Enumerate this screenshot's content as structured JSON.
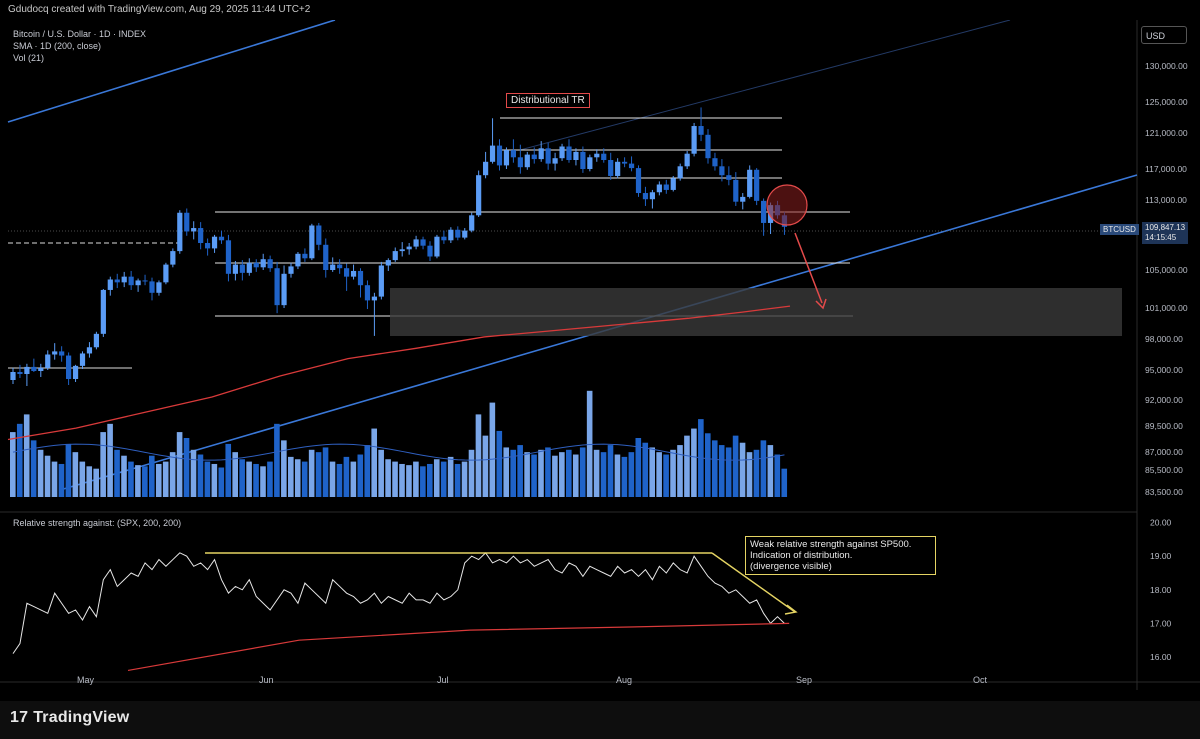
{
  "header": {
    "text": "Gdudocq created with TradingView.com, Aug 29, 2025 11:44 UTC+2"
  },
  "legend": {
    "line1": "Bitcoin / U.S. Dollar · 1D · INDEX",
    "line2": "SMA · 1D (200, close)",
    "line3": "Vol (21)",
    "rs_label": "Relative strength against: (SPX, 200, 200)"
  },
  "currency_button": "USD",
  "price_tag": {
    "symbol": "BTCUSD",
    "price": "109,847.13",
    "countdown": "14:15:45"
  },
  "annotations": {
    "distributional_tr": "Distributional TR",
    "weak_rs_line1": "Weak relative strength against SP500.",
    "weak_rs_line2": "Indication of distribution.",
    "weak_rs_line3": "(divergence visible)"
  },
  "footer": {
    "brand": "TradingView",
    "mark": "17"
  },
  "colors": {
    "up": "#5b9cf5",
    "down": "#1f63c9",
    "sma": "#d83a3a",
    "trendline": "#3a78d8",
    "annotation_yellow": "#e5d463",
    "arrow": "#e34a4a"
  },
  "chart_data": {
    "type": "candlestick",
    "x_axis_labels": [
      "May",
      "Jun",
      "Jul",
      "Aug",
      "Sep",
      "Oct"
    ],
    "price_axis_ticks": [
      "130,000.00",
      "125,000.00",
      "121,000.00",
      "117,000.00",
      "113,000.00",
      "109,000.00",
      "105,000.00",
      "101,000.00",
      "98,000.00",
      "95,000.00",
      "92,000.00",
      "89,500.00",
      "87,000.00",
      "85,500.00",
      "83,500.00"
    ],
    "rs_axis_ticks": [
      "20.00",
      "19.00",
      "18.00",
      "17.00",
      "16.00"
    ],
    "price_range": [
      82000,
      133000
    ],
    "last_price": 109847.13,
    "sma_200": [
      [
        0,
        88200
      ],
      [
        20,
        89300
      ],
      [
        40,
        90800
      ],
      [
        60,
        92300
      ],
      [
        80,
        94400
      ],
      [
        100,
        96100
      ],
      [
        120,
        97100
      ],
      [
        140,
        98200
      ],
      [
        160,
        98800
      ],
      [
        180,
        99400
      ],
      [
        200,
        100000
      ],
      [
        216,
        100600
      ],
      [
        230,
        101200
      ]
    ],
    "candles": [
      [
        94000,
        95200,
        93600,
        94800
      ],
      [
        94800,
        95500,
        94200,
        94600
      ],
      [
        94600,
        95600,
        93400,
        95300
      ],
      [
        95300,
        96100,
        94800,
        94900
      ],
      [
        94900,
        95600,
        94300,
        95200
      ],
      [
        95200,
        96900,
        95000,
        96500
      ],
      [
        96500,
        97600,
        96000,
        96800
      ],
      [
        96800,
        97300,
        95800,
        96400
      ],
      [
        96400,
        96700,
        93500,
        94100
      ],
      [
        94100,
        95500,
        93800,
        95400
      ],
      [
        95400,
        96800,
        95100,
        96600
      ],
      [
        96600,
        97700,
        96200,
        97200
      ],
      [
        97200,
        98700,
        97000,
        98500
      ],
      [
        98500,
        103000,
        98200,
        102900
      ],
      [
        102900,
        104300,
        102300,
        104000
      ],
      [
        104000,
        104600,
        103100,
        103700
      ],
      [
        103700,
        104800,
        103200,
        104300
      ],
      [
        104300,
        104900,
        102900,
        103400
      ],
      [
        103400,
        104100,
        102700,
        103900
      ],
      [
        103900,
        104500,
        103400,
        103800
      ],
      [
        103800,
        104200,
        101800,
        102600
      ],
      [
        102600,
        103900,
        102300,
        103700
      ],
      [
        103700,
        105800,
        103500,
        105600
      ],
      [
        105600,
        107400,
        105300,
        107100
      ],
      [
        107100,
        111800,
        106800,
        111500
      ],
      [
        111500,
        112000,
        108800,
        109300
      ],
      [
        109300,
        110500,
        108400,
        109700
      ],
      [
        109700,
        110400,
        107300,
        108000
      ],
      [
        108000,
        108500,
        106600,
        107400
      ],
      [
        107400,
        108900,
        106900,
        108700
      ],
      [
        108700,
        109400,
        107900,
        108300
      ],
      [
        108300,
        108900,
        103800,
        104600
      ],
      [
        104600,
        106000,
        103900,
        105600
      ],
      [
        105600,
        106100,
        103900,
        104700
      ],
      [
        104700,
        106300,
        104400,
        105800
      ],
      [
        105800,
        106200,
        104800,
        105300
      ],
      [
        105300,
        106800,
        105000,
        106200
      ],
      [
        106200,
        106600,
        104800,
        105200
      ],
      [
        105200,
        105900,
        100500,
        101300
      ],
      [
        101300,
        105500,
        101000,
        104600
      ],
      [
        104600,
        105800,
        104200,
        105400
      ],
      [
        105400,
        107000,
        105100,
        106800
      ],
      [
        106800,
        107400,
        105900,
        106300
      ],
      [
        106300,
        110200,
        106100,
        110000
      ],
      [
        110000,
        110300,
        107200,
        107800
      ],
      [
        107800,
        108500,
        104200,
        105000
      ],
      [
        105000,
        106400,
        104800,
        105600
      ],
      [
        105600,
        106200,
        104600,
        105200
      ],
      [
        105200,
        105700,
        102800,
        104300
      ],
      [
        104300,
        105600,
        104000,
        104900
      ],
      [
        104900,
        105200,
        102100,
        103400
      ],
      [
        103400,
        103900,
        100900,
        101800
      ],
      [
        101800,
        102600,
        98300,
        102200
      ],
      [
        102200,
        105900,
        101900,
        105500
      ],
      [
        105500,
        106300,
        104900,
        106100
      ],
      [
        106100,
        107500,
        105900,
        107100
      ],
      [
        107100,
        108100,
        106500,
        107300
      ],
      [
        107300,
        108000,
        106700,
        107600
      ],
      [
        107600,
        108800,
        107300,
        108400
      ],
      [
        108400,
        108700,
        107300,
        107700
      ],
      [
        107700,
        108200,
        106000,
        106500
      ],
      [
        106500,
        108900,
        106300,
        108700
      ],
      [
        108700,
        109400,
        107900,
        108300
      ],
      [
        108300,
        109800,
        108000,
        109500
      ],
      [
        109500,
        109900,
        108300,
        108600
      ],
      [
        108600,
        109700,
        108400,
        109400
      ],
      [
        109400,
        111500,
        109200,
        111200
      ],
      [
        111200,
        116800,
        111000,
        116200
      ],
      [
        116200,
        118900,
        115800,
        117800
      ],
      [
        117800,
        122900,
        117600,
        119600
      ],
      [
        119600,
        120300,
        116800,
        117400
      ],
      [
        117400,
        119400,
        117000,
        119100
      ],
      [
        119100,
        120300,
        117700,
        118300
      ],
      [
        118300,
        119700,
        116400,
        117200
      ],
      [
        117200,
        118900,
        116900,
        118600
      ],
      [
        118600,
        119400,
        117600,
        118100
      ],
      [
        118100,
        120100,
        117800,
        119300
      ],
      [
        119300,
        119900,
        116900,
        117600
      ],
      [
        117600,
        118800,
        116800,
        118200
      ],
      [
        118200,
        119800,
        117900,
        119500
      ],
      [
        119500,
        120300,
        117700,
        118000
      ],
      [
        118000,
        119300,
        117400,
        118900
      ],
      [
        118900,
        119500,
        116500,
        117000
      ],
      [
        117000,
        118600,
        116700,
        118300
      ],
      [
        118300,
        119200,
        117800,
        118700
      ],
      [
        118700,
        119300,
        117700,
        118000
      ],
      [
        118000,
        118800,
        115600,
        116100
      ],
      [
        116100,
        118200,
        115800,
        117800
      ],
      [
        117800,
        118300,
        117200,
        117600
      ],
      [
        117600,
        118400,
        116700,
        117100
      ],
      [
        117100,
        117400,
        113400,
        113900
      ],
      [
        113900,
        114700,
        112300,
        113100
      ],
      [
        113100,
        114300,
        112000,
        114000
      ],
      [
        114000,
        115400,
        113600,
        115000
      ],
      [
        115000,
        115600,
        113800,
        114300
      ],
      [
        114300,
        116100,
        114100,
        115800
      ],
      [
        115800,
        117600,
        115500,
        117300
      ],
      [
        117300,
        119000,
        117000,
        118700
      ],
      [
        118700,
        122300,
        118400,
        121900
      ],
      [
        121900,
        124300,
        120100,
        120800
      ],
      [
        120800,
        121500,
        117600,
        118200
      ],
      [
        118200,
        118800,
        116800,
        117300
      ],
      [
        117300,
        118100,
        115400,
        116200
      ],
      [
        116200,
        117300,
        114900,
        115600
      ],
      [
        115600,
        116600,
        112300,
        112800
      ],
      [
        112800,
        113900,
        111900,
        113400
      ],
      [
        113400,
        117400,
        113200,
        116900
      ],
      [
        116900,
        117100,
        112400,
        112900
      ],
      [
        112900,
        113200,
        108800,
        110300
      ],
      [
        110300,
        112700,
        109000,
        112400
      ],
      [
        112400,
        112900,
        110800,
        111200
      ],
      [
        111200,
        111600,
        108900,
        109847
      ]
    ],
    "volume_heights": [
      0.55,
      0.62,
      0.7,
      0.48,
      0.4,
      0.35,
      0.3,
      0.28,
      0.45,
      0.38,
      0.3,
      0.26,
      0.24,
      0.55,
      0.62,
      0.4,
      0.35,
      0.3,
      0.27,
      0.26,
      0.35,
      0.28,
      0.3,
      0.38,
      0.55,
      0.5,
      0.4,
      0.36,
      0.3,
      0.28,
      0.25,
      0.45,
      0.38,
      0.32,
      0.3,
      0.28,
      0.26,
      0.3,
      0.62,
      0.48,
      0.34,
      0.32,
      0.3,
      0.4,
      0.38,
      0.42,
      0.3,
      0.28,
      0.34,
      0.3,
      0.36,
      0.44,
      0.58,
      0.4,
      0.32,
      0.3,
      0.28,
      0.27,
      0.3,
      0.26,
      0.28,
      0.32,
      0.3,
      0.34,
      0.28,
      0.3,
      0.4,
      0.7,
      0.52,
      0.8,
      0.56,
      0.42,
      0.4,
      0.44,
      0.38,
      0.36,
      0.4,
      0.42,
      0.35,
      0.38,
      0.4,
      0.36,
      0.42,
      0.9,
      0.4,
      0.38,
      0.44,
      0.36,
      0.34,
      0.38,
      0.5,
      0.46,
      0.42,
      0.38,
      0.36,
      0.4,
      0.44,
      0.52,
      0.58,
      0.66,
      0.54,
      0.48,
      0.44,
      0.42,
      0.52,
      0.46,
      0.38,
      0.4,
      0.48,
      0.44,
      0.36,
      0.24
    ],
    "relative_strength": [
      16.1,
      16.4,
      17.6,
      17.5,
      17.4,
      17.3,
      17.9,
      17.6,
      17.3,
      17.4,
      17.1,
      17.5,
      17.2,
      18.3,
      18.6,
      18.1,
      18.3,
      18.5,
      18.4,
      18.8,
      18.6,
      18.9,
      18.7,
      18.9,
      19.1,
      19.0,
      18.7,
      18.8,
      18.6,
      18.9,
      18.3,
      17.9,
      18.1,
      18.0,
      18.3,
      17.8,
      17.6,
      17.4,
      17.7,
      18.0,
      17.9,
      17.6,
      18.2,
      18.0,
      17.8,
      17.6,
      18.3,
      18.1,
      17.9,
      17.8,
      17.6,
      17.7,
      17.9,
      17.6,
      17.8,
      17.7,
      17.6,
      17.9,
      17.7,
      17.7,
      17.6,
      17.9,
      17.7,
      17.8,
      18.0,
      18.8,
      19.0,
      18.9,
      19.1,
      18.8,
      18.9,
      18.8,
      19.0,
      18.8,
      18.9,
      18.7,
      18.8,
      18.9,
      18.6,
      18.5,
      18.8,
      18.7,
      18.4,
      18.7,
      18.6,
      18.5,
      18.4,
      18.7,
      18.5,
      18.6,
      18.4,
      18.6,
      18.3,
      18.7,
      18.5,
      18.8,
      18.6,
      18.5,
      19.0,
      18.7,
      18.4,
      18.2,
      18.1,
      17.9,
      18.0,
      17.8,
      17.6,
      17.7,
      17.3,
      17.0,
      17.2,
      17.0
    ],
    "rs_baseline": [
      [
        0,
        15.6
      ],
      [
        60,
        16.5
      ],
      [
        120,
        16.8
      ],
      [
        180,
        16.9
      ],
      [
        232,
        17.0
      ]
    ]
  }
}
